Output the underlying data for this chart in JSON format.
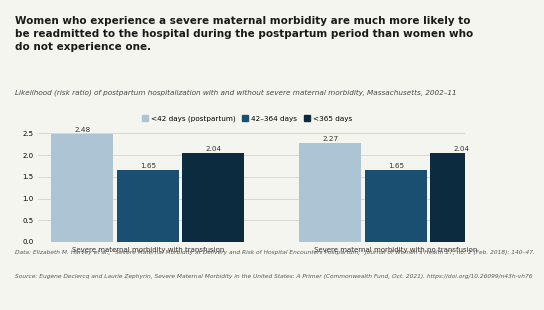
{
  "title": "Women who experience a severe maternal morbidity are much more likely to\nbe readmitted to the hospital during the postpartum period than women who\ndo not experience one.",
  "subtitle": "Likelihood (risk ratio) of postpartum hospitalization with and without severe maternal morbidity, Massachusetts, 2002–11",
  "legend_labels": [
    "<42 days (postpartum)",
    "42–364 days",
    "<365 days"
  ],
  "legend_colors": [
    "#adc4d4",
    "#1a4f72",
    "#0d2b3e"
  ],
  "group1_label": "Severe maternal morbidity with transfusion",
  "group2_label": "Severe maternal morbidity with no transfusion",
  "group1_values": [
    2.48,
    1.65,
    2.04
  ],
  "group2_values": [
    2.27,
    1.65,
    2.04
  ],
  "bar_colors": [
    "#adc4d4",
    "#1a4f72",
    "#0d2b3e"
  ],
  "ylim": [
    0,
    2.8
  ],
  "yticks": [
    0,
    0.5,
    1.0,
    1.5,
    2.0,
    2.5
  ],
  "footnote1": "Data: Elizabeth M. Harvey et al., “Severe Maternal Morbidity at Delivery and Risk of Hospital Encounters Postpartum,” Journal of Women’s Health 27, no. 2 (Feb. 2018): 140–47.",
  "footnote2": "Source: Eugene Declercq and Laurie Zephyrin, Severe Maternal Morbidity in the United States: A Primer (Commonwealth Fund, Oct. 2021). https://doi.org/10.26099/n43h-vh76",
  "background_color": "#f5f5f0",
  "title_fontsize": 7.5,
  "subtitle_fontsize": 5.2,
  "label_fontsize": 5.0,
  "value_fontsize": 5.2,
  "legend_fontsize": 5.2,
  "footnote_fontsize": 4.2
}
